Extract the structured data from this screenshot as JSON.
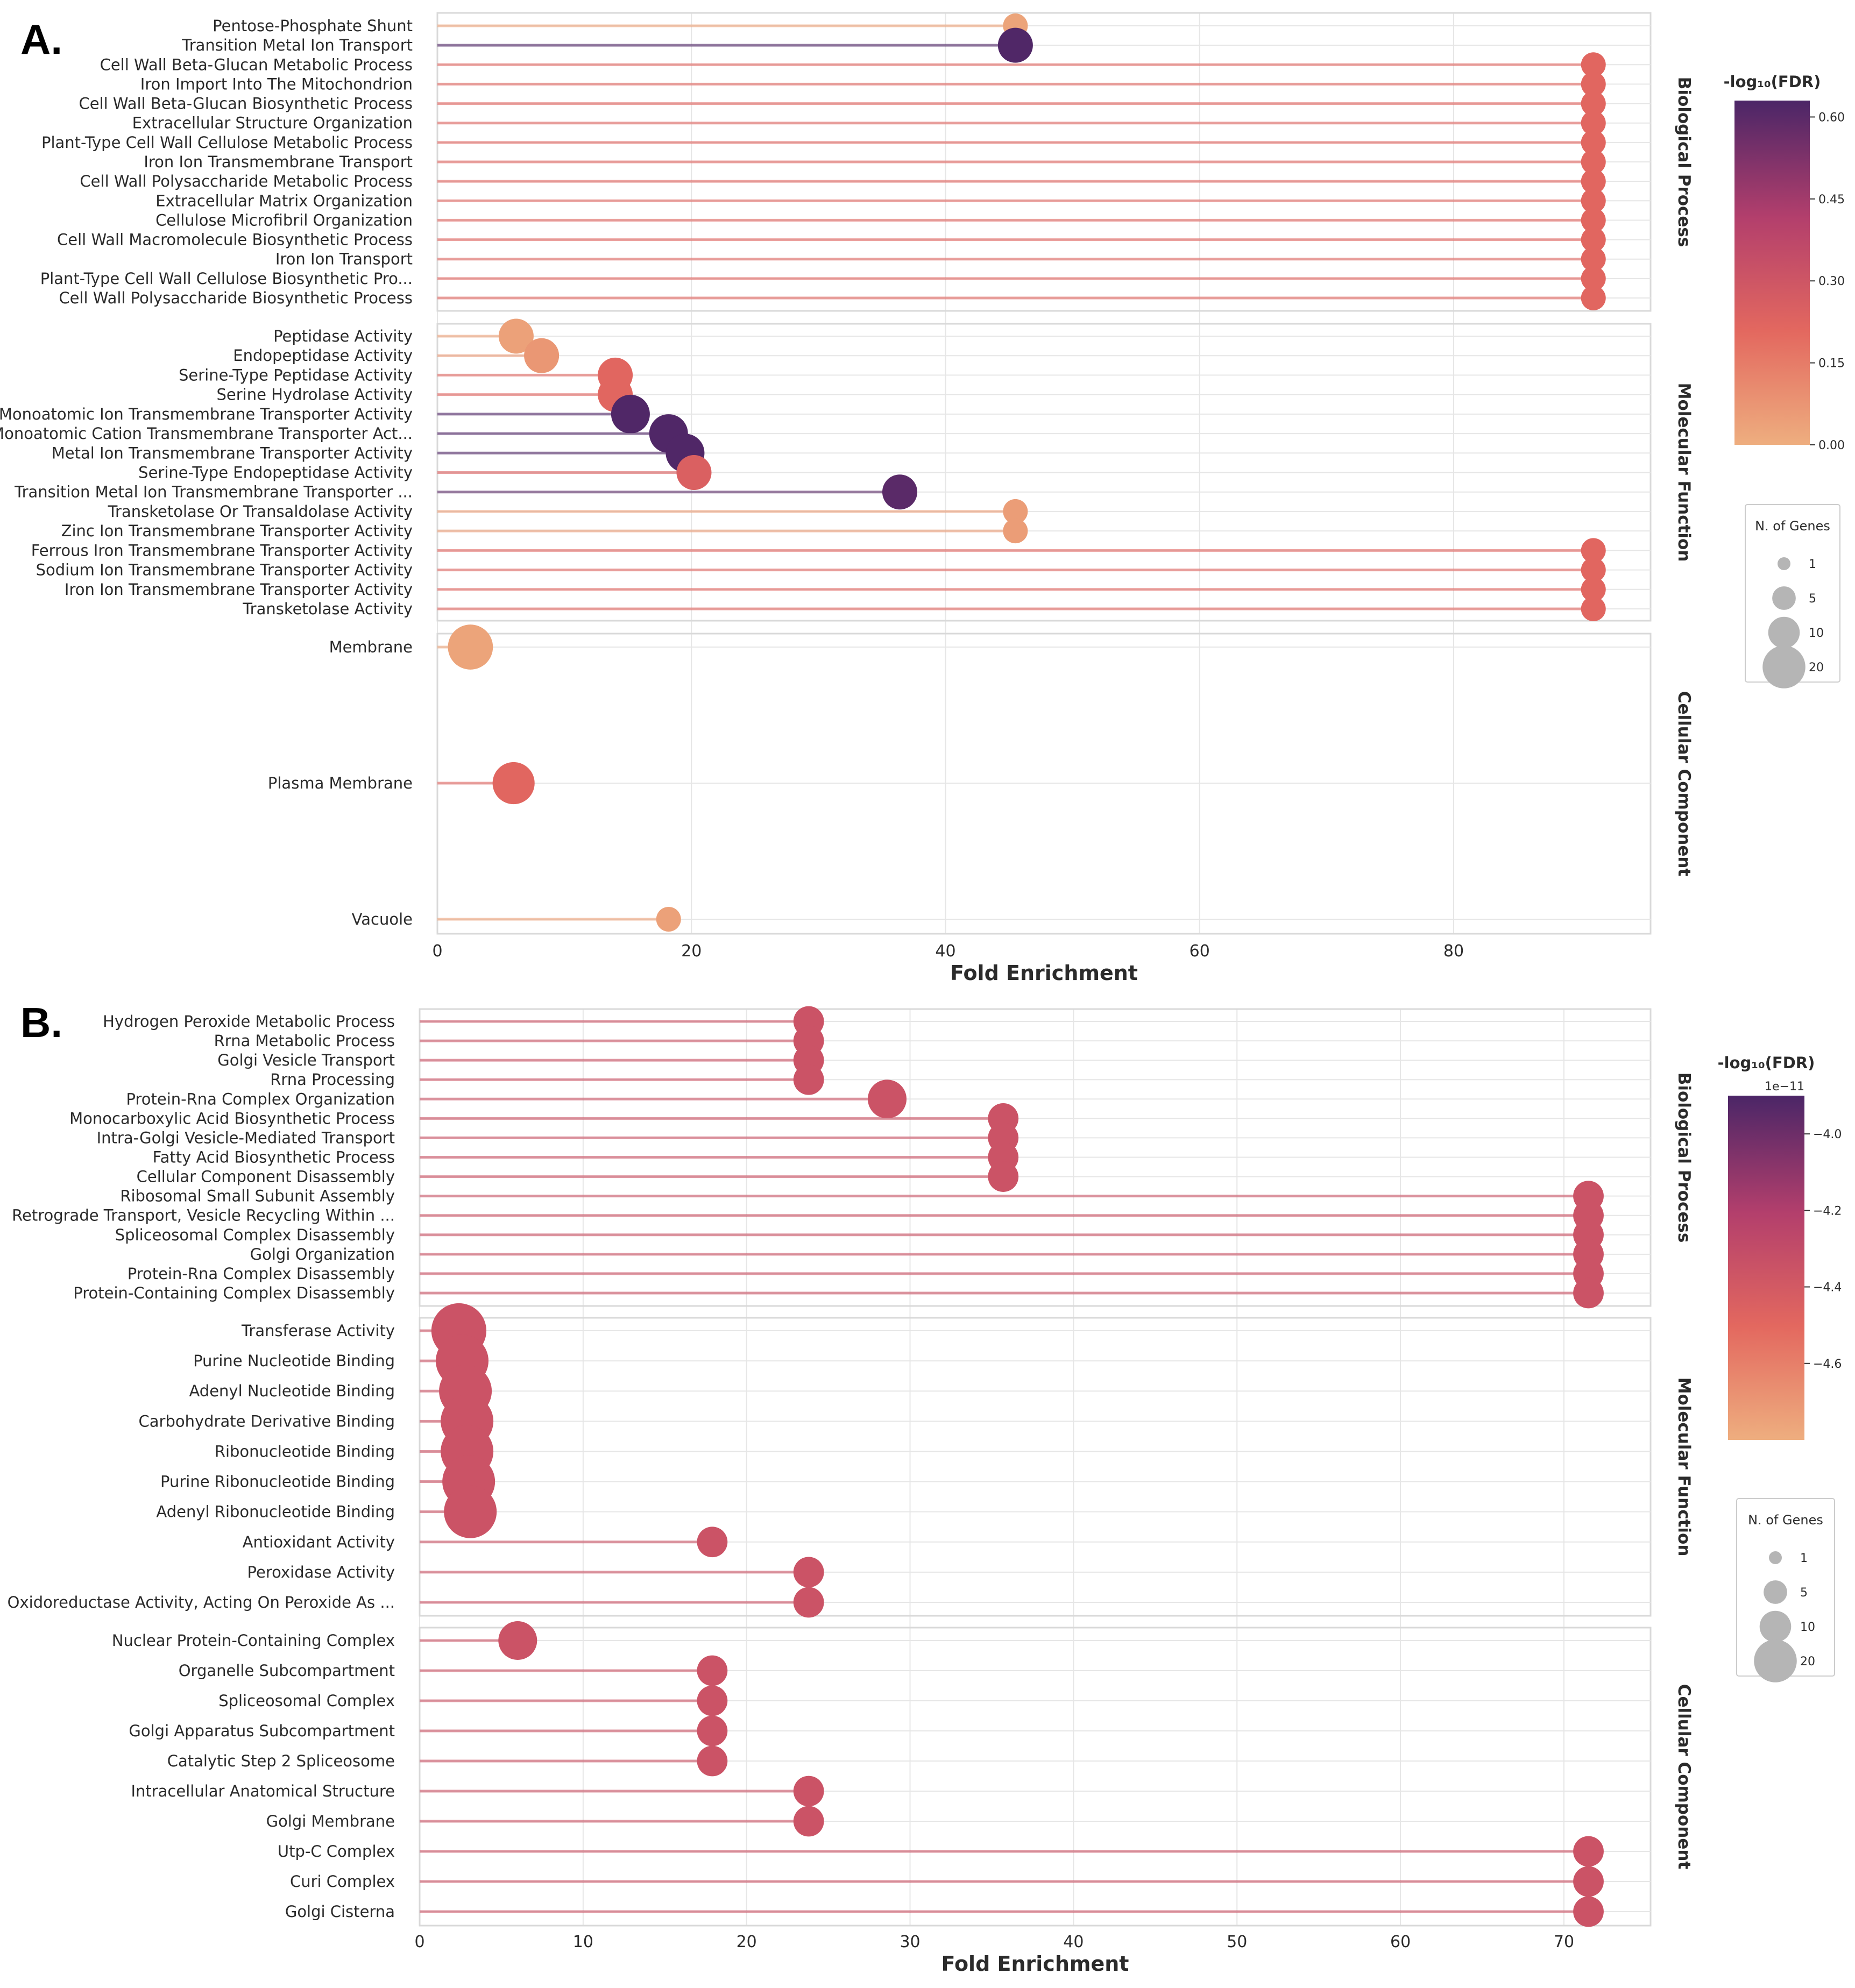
{
  "chart_data": [
    {
      "panel": "A.",
      "type": "lollipop",
      "xlabel": "Fold Enrichment",
      "xlim": [
        0,
        95.5
      ],
      "xticks": [
        0,
        20,
        40,
        60,
        80
      ],
      "grid": true,
      "colorbar": {
        "title": "-log₁₀(FDR)",
        "offset_label": "",
        "ticks": [
          "0.00",
          "0.15",
          "0.30",
          "0.45",
          "0.60"
        ],
        "tick_values": [
          0.0,
          0.15,
          0.3,
          0.45,
          0.6
        ],
        "range": [
          0.0,
          0.63
        ]
      },
      "size_legend": {
        "title": "N. of Genes",
        "entries": [
          1,
          5,
          10,
          20
        ]
      },
      "groups": [
        {
          "name": "Biological Process",
          "terms": [
            {
              "label": "Pentose-Phosphate Shunt",
              "x": 45.5,
              "color_value": 0.03,
              "genes": 1
            },
            {
              "label": "Transition Metal Ion Transport",
              "x": 45.5,
              "color_value": 0.62,
              "genes": 3
            },
            {
              "label": "Cell Wall Beta-Glucan Metabolic Process",
              "x": 91.0,
              "color_value": 0.22,
              "genes": 1
            },
            {
              "label": "Iron Import Into The Mitochondrion",
              "x": 91.0,
              "color_value": 0.22,
              "genes": 1
            },
            {
              "label": "Cell Wall Beta-Glucan Biosynthetic Process",
              "x": 91.0,
              "color_value": 0.22,
              "genes": 1
            },
            {
              "label": "Extracellular Structure Organization",
              "x": 91.0,
              "color_value": 0.22,
              "genes": 1
            },
            {
              "label": "Plant-Type Cell Wall Cellulose Metabolic Process",
              "x": 91.0,
              "color_value": 0.22,
              "genes": 1
            },
            {
              "label": "Iron Ion Transmembrane Transport",
              "x": 91.0,
              "color_value": 0.22,
              "genes": 1
            },
            {
              "label": "Cell Wall Polysaccharide Metabolic Process",
              "x": 91.0,
              "color_value": 0.22,
              "genes": 1
            },
            {
              "label": "Extracellular Matrix Organization",
              "x": 91.0,
              "color_value": 0.22,
              "genes": 1
            },
            {
              "label": "Cellulose Microfibril Organization",
              "x": 91.0,
              "color_value": 0.22,
              "genes": 1
            },
            {
              "label": "Cell Wall Macromolecule Biosynthetic Process",
              "x": 91.0,
              "color_value": 0.22,
              "genes": 1
            },
            {
              "label": "Iron Ion Transport",
              "x": 91.0,
              "color_value": 0.22,
              "genes": 1
            },
            {
              "label": "Plant-Type Cell Wall Cellulose Biosynthetic Pro...",
              "x": 91.0,
              "color_value": 0.22,
              "genes": 1
            },
            {
              "label": "Cell Wall Polysaccharide Biosynthetic Process",
              "x": 91.0,
              "color_value": 0.22,
              "genes": 1
            }
          ]
        },
        {
          "name": "Molecular Function",
          "terms": [
            {
              "label": "Peptidase Activity",
              "x": 6.2,
              "color_value": 0.04,
              "genes": 3
            },
            {
              "label": "Endopeptidase Activity",
              "x": 8.2,
              "color_value": 0.07,
              "genes": 3
            },
            {
              "label": "Serine-Type Peptidase Activity",
              "x": 14.0,
              "color_value": 0.22,
              "genes": 3
            },
            {
              "label": "Serine Hydrolase Activity",
              "x": 14.0,
              "color_value": 0.22,
              "genes": 3
            },
            {
              "label": "Monoatomic Ion Transmembrane Transporter Activity",
              "x": 15.2,
              "color_value": 0.62,
              "genes": 4
            },
            {
              "label": "Monoatomic Cation Transmembrane Transporter Act...",
              "x": 18.2,
              "color_value": 0.62,
              "genes": 4
            },
            {
              "label": "Metal Ion Transmembrane Transporter Activity",
              "x": 19.5,
              "color_value": 0.62,
              "genes": 4
            },
            {
              "label": "Serine-Type Endopeptidase Activity",
              "x": 20.2,
              "color_value": 0.25,
              "genes": 3
            },
            {
              "label": "Transition Metal Ion Transmembrane Transporter ...",
              "x": 36.4,
              "color_value": 0.6,
              "genes": 3
            },
            {
              "label": "Transketolase Or Transaldolase Activity",
              "x": 45.5,
              "color_value": 0.05,
              "genes": 1
            },
            {
              "label": "Zinc Ion Transmembrane Transporter Activity",
              "x": 45.5,
              "color_value": 0.05,
              "genes": 1
            },
            {
              "label": "Ferrous Iron Transmembrane Transporter Activity",
              "x": 91.0,
              "color_value": 0.22,
              "genes": 1
            },
            {
              "label": "Sodium Ion Transmembrane Transporter Activity",
              "x": 91.0,
              "color_value": 0.22,
              "genes": 1
            },
            {
              "label": "Iron Ion Transmembrane Transporter Activity",
              "x": 91.0,
              "color_value": 0.22,
              "genes": 1
            },
            {
              "label": "Transketolase Activity",
              "x": 91.0,
              "color_value": 0.22,
              "genes": 1
            }
          ]
        },
        {
          "name": "Cellular Component",
          "terms": [
            {
              "label": "Membrane",
              "x": 2.6,
              "color_value": 0.03,
              "genes": 6
            },
            {
              "label": "Plasma Membrane",
              "x": 6.0,
              "color_value": 0.22,
              "genes": 5
            },
            {
              "label": "Vacuole",
              "x": 18.2,
              "color_value": 0.04,
              "genes": 1
            }
          ]
        }
      ]
    },
    {
      "panel": "B.",
      "type": "lollipop",
      "xlabel": "Fold Enrichment",
      "xlim": [
        0,
        75.3
      ],
      "xticks": [
        0,
        10,
        20,
        30,
        40,
        50,
        60,
        70
      ],
      "grid": true,
      "colorbar": {
        "title": "-log₁₀(FDR)",
        "offset_label": "1e−11",
        "ticks": [
          "−4.0",
          "−4.2",
          "−4.4",
          "−4.6"
        ],
        "tick_values": [
          -4.0,
          -4.2,
          -4.4,
          -4.6
        ],
        "range": [
          -4.8,
          -3.9
        ]
      },
      "size_legend": {
        "title": "N. of Genes",
        "entries": [
          1,
          5,
          10,
          20
        ]
      },
      "groups": [
        {
          "name": "Biological Process",
          "terms": [
            {
              "label": "Hydrogen Peroxide Metabolic Process",
              "x": 23.8,
              "color_value": -4.35,
              "genes": 2
            },
            {
              "label": "Rrna Metabolic Process",
              "x": 23.8,
              "color_value": -4.35,
              "genes": 2
            },
            {
              "label": "Golgi Vesicle Transport",
              "x": 23.8,
              "color_value": -4.35,
              "genes": 2
            },
            {
              "label": "Rrna Processing",
              "x": 23.8,
              "color_value": -4.35,
              "genes": 2
            },
            {
              "label": "Protein-Rna Complex Organization",
              "x": 28.6,
              "color_value": -4.35,
              "genes": 4
            },
            {
              "label": "Monocarboxylic Acid Biosynthetic Process",
              "x": 35.7,
              "color_value": -4.35,
              "genes": 2
            },
            {
              "label": "Intra-Golgi Vesicle-Mediated Transport",
              "x": 35.7,
              "color_value": -4.35,
              "genes": 2
            },
            {
              "label": "Fatty Acid Biosynthetic Process",
              "x": 35.7,
              "color_value": -4.35,
              "genes": 2
            },
            {
              "label": "Cellular Component Disassembly",
              "x": 35.7,
              "color_value": -4.35,
              "genes": 2
            },
            {
              "label": "Ribosomal Small Subunit Assembly",
              "x": 71.5,
              "color_value": -4.35,
              "genes": 2
            },
            {
              "label": "Retrograde Transport, Vesicle Recycling Within ...",
              "x": 71.5,
              "color_value": -4.35,
              "genes": 2
            },
            {
              "label": "Spliceosomal Complex Disassembly",
              "x": 71.5,
              "color_value": -4.35,
              "genes": 2
            },
            {
              "label": "Golgi Organization",
              "x": 71.5,
              "color_value": -4.35,
              "genes": 2
            },
            {
              "label": "Protein-Rna Complex Disassembly",
              "x": 71.5,
              "color_value": -4.35,
              "genes": 2
            },
            {
              "label": "Protein-Containing Complex Disassembly",
              "x": 71.5,
              "color_value": -4.35,
              "genes": 2
            }
          ]
        },
        {
          "name": "Molecular Function",
          "terms": [
            {
              "label": "Transferase Activity",
              "x": 2.4,
              "color_value": -4.35,
              "genes": 10
            },
            {
              "label": "Purine Nucleotide Binding",
              "x": 2.6,
              "color_value": -4.35,
              "genes": 9
            },
            {
              "label": "Adenyl Nucleotide Binding",
              "x": 2.8,
              "color_value": -4.35,
              "genes": 9
            },
            {
              "label": "Carbohydrate Derivative Binding",
              "x": 2.9,
              "color_value": -4.35,
              "genes": 9
            },
            {
              "label": "Ribonucleotide Binding",
              "x": 2.9,
              "color_value": -4.35,
              "genes": 9
            },
            {
              "label": "Purine Ribonucleotide Binding",
              "x": 3.0,
              "color_value": -4.35,
              "genes": 9
            },
            {
              "label": "Adenyl Ribonucleotide Binding",
              "x": 3.1,
              "color_value": -4.35,
              "genes": 9
            },
            {
              "label": "Antioxidant Activity",
              "x": 17.9,
              "color_value": -4.35,
              "genes": 2
            },
            {
              "label": "Peroxidase Activity",
              "x": 23.8,
              "color_value": -4.35,
              "genes": 2
            },
            {
              "label": "Oxidoreductase Activity, Acting On Peroxide As ...",
              "x": 23.8,
              "color_value": -4.35,
              "genes": 2
            }
          ]
        },
        {
          "name": "Cellular Component",
          "terms": [
            {
              "label": "Nuclear Protein-Containing Complex",
              "x": 6.0,
              "color_value": -4.35,
              "genes": 4
            },
            {
              "label": "Organelle Subcompartment",
              "x": 17.9,
              "color_value": -4.35,
              "genes": 2
            },
            {
              "label": "Spliceosomal Complex",
              "x": 17.9,
              "color_value": -4.35,
              "genes": 2
            },
            {
              "label": "Golgi Apparatus Subcompartment",
              "x": 17.9,
              "color_value": -4.35,
              "genes": 2
            },
            {
              "label": "Catalytic Step 2 Spliceosome",
              "x": 17.9,
              "color_value": -4.35,
              "genes": 2
            },
            {
              "label": "Intracellular Anatomical Structure",
              "x": 23.8,
              "color_value": -4.35,
              "genes": 2
            },
            {
              "label": "Golgi Membrane",
              "x": 23.8,
              "color_value": -4.35,
              "genes": 2
            },
            {
              "label": "Utp-C Complex",
              "x": 71.5,
              "color_value": -4.35,
              "genes": 2
            },
            {
              "label": "Curi Complex",
              "x": 71.5,
              "color_value": -4.35,
              "genes": 2
            },
            {
              "label": "Golgi Cisterna",
              "x": 71.5,
              "color_value": -4.35,
              "genes": 2
            }
          ]
        }
      ]
    }
  ],
  "colors": {
    "colormap_low": "#eeae7f",
    "colormap_mid1": "#e3685f",
    "colormap_mid2": "#b33f6c",
    "colormap_high": "#4b2667",
    "stem_alpha_note": "stems use point color at reduced opacity",
    "grid": "#e6e6e6",
    "frame": "#d9d9d9",
    "size_legend_marker": "#b5b5b5"
  }
}
